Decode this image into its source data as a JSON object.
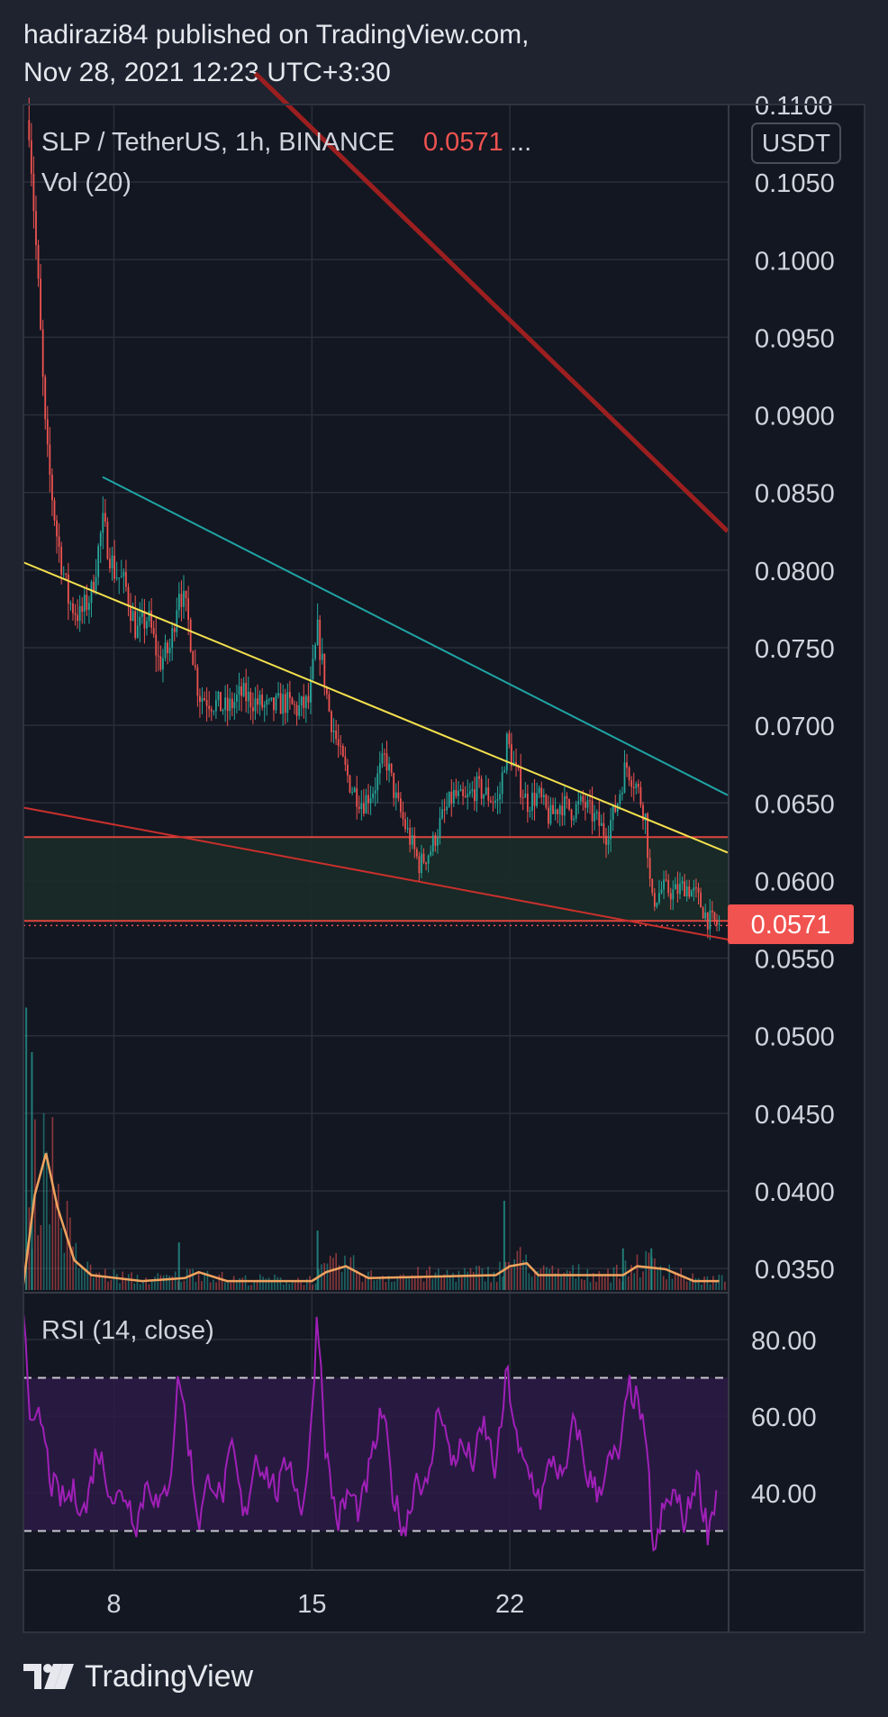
{
  "header": {
    "line1": "hadirazi84 published on TradingView.com,",
    "line2": "Nov 28, 2021 12:23 UTC+3:30"
  },
  "legend": {
    "symbol": "SLP / TetherUS, 1h, BINANCE",
    "last_value": "0.0571",
    "ellipsis": "...",
    "volume": "Vol (20)",
    "rsi": "RSI (14, close)"
  },
  "currency_button": "USDT",
  "price_badge": "0.0571",
  "footer": {
    "brand": "TradingView"
  },
  "colors": {
    "background": "#131722",
    "frame": "#1f2330",
    "grid": "#2a2e39",
    "up": "#26a69a",
    "down": "#ef5350",
    "badge": "#f05350",
    "yellow_line": "#f4e04d",
    "teal_line": "#1fa4a4",
    "dark_red_line": "#9c1f1f",
    "red_line": "#c9302c",
    "zone_fill": "#1a2b28",
    "volume_ma": "#f0a35e",
    "rsi_line": "#a020b8",
    "rsi_band": "#2d1a45"
  },
  "chart_data": {
    "type": "candlestick",
    "symbol": "SLP / TetherUS",
    "interval": "1h",
    "exchange": "BINANCE",
    "last_price": 0.0571,
    "price_axis": {
      "ticks": [
        "0.1100",
        "0.1050",
        "0.1000",
        "0.0950",
        "0.0900",
        "0.0850",
        "0.0800",
        "0.0750",
        "0.0700",
        "0.0650",
        "0.0600",
        "0.0550",
        "0.0500",
        "0.0450",
        "0.0400",
        "0.0350"
      ],
      "range": [
        0.0335,
        0.11
      ]
    },
    "time_axis": {
      "ticks": [
        "8",
        "15",
        "22"
      ],
      "range_days": [
        4.8,
        29.7
      ]
    },
    "price_path": [
      [
        5.0,
        0.109
      ],
      [
        5.3,
        0.099
      ],
      [
        5.6,
        0.088
      ],
      [
        6.0,
        0.082
      ],
      [
        6.4,
        0.078
      ],
      [
        6.8,
        0.077
      ],
      [
        7.2,
        0.0785
      ],
      [
        7.6,
        0.083
      ],
      [
        8.0,
        0.08
      ],
      [
        8.4,
        0.079
      ],
      [
        8.8,
        0.076
      ],
      [
        9.2,
        0.077
      ],
      [
        9.6,
        0.074
      ],
      [
        10.0,
        0.075
      ],
      [
        10.3,
        0.079
      ],
      [
        10.6,
        0.077
      ],
      [
        11.0,
        0.072
      ],
      [
        11.5,
        0.0715
      ],
      [
        12.0,
        0.071
      ],
      [
        12.5,
        0.072
      ],
      [
        13.0,
        0.0715
      ],
      [
        13.5,
        0.071
      ],
      [
        14.0,
        0.0715
      ],
      [
        14.5,
        0.071
      ],
      [
        14.9,
        0.0715
      ],
      [
        15.2,
        0.076
      ],
      [
        15.6,
        0.071
      ],
      [
        16.0,
        0.068
      ],
      [
        16.4,
        0.066
      ],
      [
        16.8,
        0.065
      ],
      [
        17.2,
        0.066
      ],
      [
        17.6,
        0.068
      ],
      [
        18.0,
        0.065
      ],
      [
        18.4,
        0.063
      ],
      [
        18.8,
        0.061
      ],
      [
        19.2,
        0.062
      ],
      [
        19.6,
        0.064
      ],
      [
        20.0,
        0.0655
      ],
      [
        20.4,
        0.065
      ],
      [
        20.8,
        0.066
      ],
      [
        21.2,
        0.0655
      ],
      [
        21.6,
        0.065
      ],
      [
        21.9,
        0.069
      ],
      [
        22.2,
        0.067
      ],
      [
        22.6,
        0.065
      ],
      [
        23.0,
        0.0655
      ],
      [
        23.4,
        0.064
      ],
      [
        23.8,
        0.065
      ],
      [
        24.2,
        0.0645
      ],
      [
        24.6,
        0.065
      ],
      [
        25.0,
        0.064
      ],
      [
        25.4,
        0.063
      ],
      [
        25.8,
        0.065
      ],
      [
        26.1,
        0.0675
      ],
      [
        26.5,
        0.066
      ],
      [
        26.8,
        0.064
      ],
      [
        27.0,
        0.0585
      ],
      [
        27.4,
        0.0595
      ],
      [
        27.8,
        0.0592
      ],
      [
        28.2,
        0.0597
      ],
      [
        28.6,
        0.059
      ],
      [
        29.0,
        0.0575
      ],
      [
        29.4,
        0.0571
      ]
    ],
    "trend_lines": [
      {
        "name": "dark red resistance",
        "color": "#9c1f1f",
        "from": [
          13.0,
          0.112
        ],
        "to": [
          29.7,
          0.0825
        ]
      },
      {
        "name": "teal resistance",
        "color": "#1fa4a4",
        "from": [
          7.6,
          0.086
        ],
        "to": [
          29.7,
          0.0655
        ]
      },
      {
        "name": "yellow trend",
        "color": "#f4e04d",
        "from": [
          4.8,
          0.0805
        ],
        "to": [
          29.7,
          0.0618
        ]
      },
      {
        "name": "red support",
        "color": "#c9302c",
        "from": [
          4.8,
          0.0647
        ],
        "to": [
          29.7,
          0.0562
        ]
      }
    ],
    "zone": {
      "top": 0.0628,
      "bottom": 0.0574
    },
    "volume": {
      "ma_length": 20,
      "ma_path": [
        [
          4.8,
          0.02
        ],
        [
          5.2,
          0.32
        ],
        [
          5.6,
          0.46
        ],
        [
          6.0,
          0.28
        ],
        [
          6.6,
          0.1
        ],
        [
          7.2,
          0.05
        ],
        [
          9.0,
          0.03
        ],
        [
          10.5,
          0.04
        ],
        [
          11.0,
          0.06
        ],
        [
          12.0,
          0.03
        ],
        [
          15.0,
          0.03
        ],
        [
          15.5,
          0.06
        ],
        [
          16.2,
          0.08
        ],
        [
          17.0,
          0.04
        ],
        [
          21.5,
          0.05
        ],
        [
          22.0,
          0.08
        ],
        [
          22.6,
          0.09
        ],
        [
          23.0,
          0.05
        ],
        [
          26.0,
          0.05
        ],
        [
          26.5,
          0.08
        ],
        [
          27.5,
          0.07
        ],
        [
          28.5,
          0.03
        ],
        [
          29.4,
          0.03
        ]
      ],
      "spikes": [
        [
          4.9,
          0.95
        ],
        [
          5.1,
          0.8
        ],
        [
          10.3,
          0.16
        ],
        [
          15.2,
          0.2
        ],
        [
          21.8,
          0.3
        ],
        [
          26.0,
          0.14
        ],
        [
          27.0,
          0.14
        ]
      ]
    },
    "rsi": {
      "period": 14,
      "source": "close",
      "axis_ticks": [
        "80.00",
        "60.00",
        "40.00"
      ],
      "range": [
        20,
        92
      ],
      "upper_band": 70,
      "lower_band": 30,
      "path": [
        [
          4.8,
          90
        ],
        [
          5.1,
          55
        ],
        [
          5.4,
          60
        ],
        [
          5.8,
          42
        ],
        [
          6.2,
          38
        ],
        [
          6.6,
          40
        ],
        [
          7.0,
          35
        ],
        [
          7.4,
          52
        ],
        [
          7.7,
          45
        ],
        [
          8.0,
          38
        ],
        [
          8.4,
          40
        ],
        [
          8.8,
          32
        ],
        [
          9.2,
          44
        ],
        [
          9.6,
          35
        ],
        [
          10.0,
          45
        ],
        [
          10.3,
          72
        ],
        [
          10.6,
          55
        ],
        [
          11.0,
          32
        ],
        [
          11.4,
          45
        ],
        [
          11.8,
          38
        ],
        [
          12.2,
          52
        ],
        [
          12.6,
          32
        ],
        [
          13.0,
          50
        ],
        [
          13.4,
          45
        ],
        [
          13.8,
          40
        ],
        [
          14.2,
          50
        ],
        [
          14.6,
          35
        ],
        [
          14.9,
          48
        ],
        [
          15.2,
          88
        ],
        [
          15.5,
          50
        ],
        [
          15.9,
          32
        ],
        [
          16.3,
          40
        ],
        [
          16.7,
          35
        ],
        [
          17.1,
          48
        ],
        [
          17.5,
          62
        ],
        [
          17.9,
          38
        ],
        [
          18.3,
          30
        ],
        [
          18.7,
          45
        ],
        [
          19.1,
          40
        ],
        [
          19.5,
          65
        ],
        [
          19.9,
          48
        ],
        [
          20.3,
          52
        ],
        [
          20.7,
          48
        ],
        [
          21.1,
          58
        ],
        [
          21.5,
          45
        ],
        [
          21.9,
          72
        ],
        [
          22.3,
          50
        ],
        [
          22.7,
          45
        ],
        [
          23.1,
          38
        ],
        [
          23.5,
          50
        ],
        [
          23.9,
          42
        ],
        [
          24.3,
          60
        ],
        [
          24.7,
          45
        ],
        [
          25.1,
          40
        ],
        [
          25.5,
          48
        ],
        [
          25.9,
          50
        ],
        [
          26.2,
          68
        ],
        [
          26.6,
          62
        ],
        [
          26.9,
          45
        ],
        [
          27.1,
          22
        ],
        [
          27.4,
          35
        ],
        [
          27.8,
          40
        ],
        [
          28.2,
          32
        ],
        [
          28.6,
          45
        ],
        [
          29.0,
          30
        ],
        [
          29.3,
          40
        ]
      ]
    }
  }
}
